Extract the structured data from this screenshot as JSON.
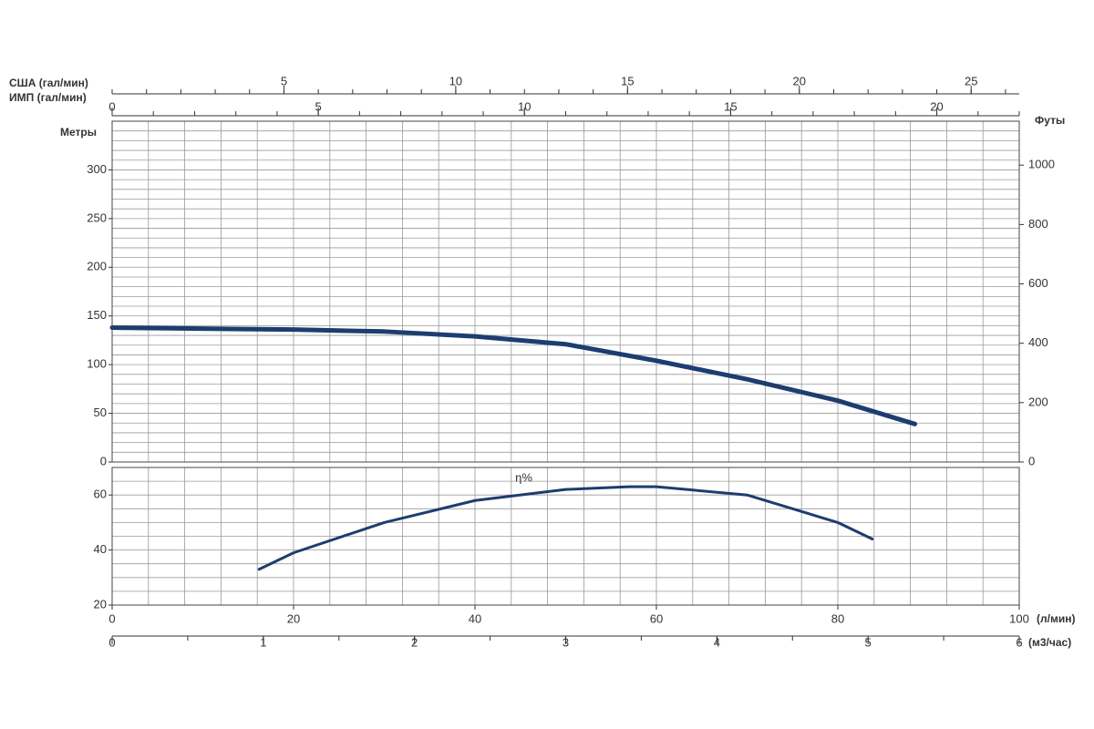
{
  "chart_data": [
    {
      "type": "line",
      "ylabel": "Метры",
      "y2label": "Футы",
      "x": [
        0,
        10,
        20,
        30,
        40,
        50,
        60,
        70,
        80,
        88.5
      ],
      "values": [
        138,
        137,
        136,
        134,
        129,
        121,
        104,
        85,
        63,
        39
      ],
      "color": "#1d3d70",
      "xlim": [
        0,
        100
      ],
      "ylim": [
        0,
        350
      ],
      "yticks": [
        0,
        50,
        100,
        150,
        200,
        250,
        300
      ],
      "y2lim": [
        0,
        1148
      ],
      "y2ticks": [
        0,
        200,
        400,
        600,
        800,
        1000
      ],
      "grid": true
    },
    {
      "type": "line",
      "annotation": "η%",
      "x": [
        16.2,
        20,
        30,
        40,
        50,
        57,
        60,
        70,
        80,
        83.8
      ],
      "values": [
        33,
        39,
        50,
        58,
        62,
        63,
        63,
        60,
        50,
        44
      ],
      "color": "#1d3d70",
      "xlim": [
        0,
        100
      ],
      "xticks": [
        0,
        20,
        40,
        60,
        80,
        100
      ],
      "xlabel": "(л/мин)",
      "ylim": [
        20,
        70
      ],
      "yticks": [
        20,
        40,
        60
      ],
      "grid": true
    }
  ],
  "flow_axes": [
    {
      "label": "США (гал/мин)",
      "lim": [
        0,
        26.4
      ],
      "ticks": [
        5,
        10,
        15,
        20,
        25
      ]
    },
    {
      "label": "ИМП (гал/мин)",
      "lim": [
        0,
        22
      ],
      "ticks": [
        0,
        5,
        10,
        15,
        20
      ]
    },
    {
      "label": "(м3/час)",
      "lim": [
        0,
        6
      ],
      "ticks": [
        0,
        1,
        2,
        3,
        4,
        5,
        6
      ]
    }
  ]
}
